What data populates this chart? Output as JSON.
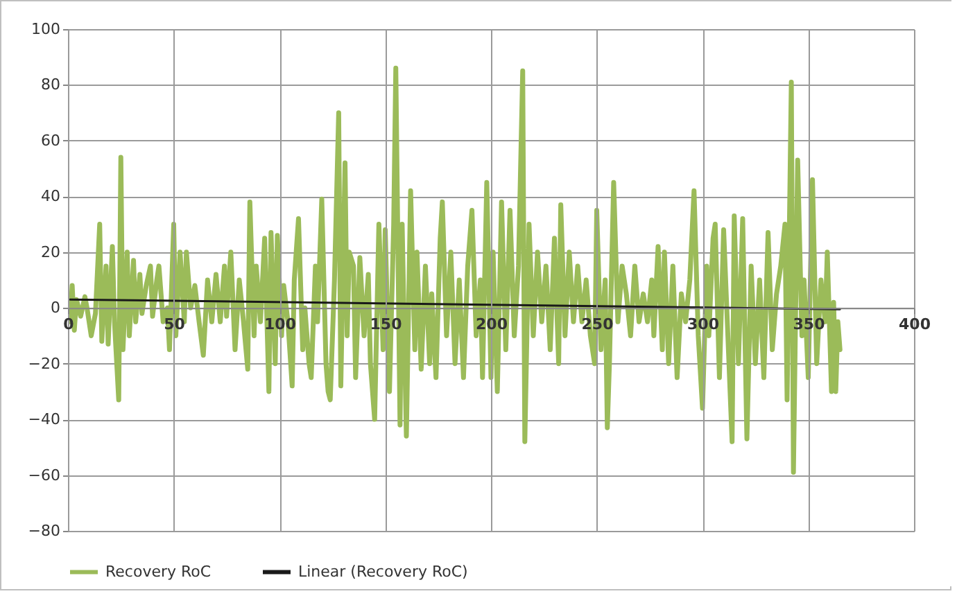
{
  "chart_data": {
    "type": "line",
    "xlim": [
      0,
      400
    ],
    "xticks": [
      0,
      50,
      100,
      150,
      200,
      250,
      300,
      350,
      400
    ],
    "ylim": [
      -80,
      100
    ],
    "yticks": [
      -80,
      -60,
      -40,
      -20,
      0,
      20,
      40,
      60,
      80,
      100
    ],
    "grid": true,
    "legend": "bottom",
    "marker": "none",
    "line_style": "solid",
    "series": [
      {
        "name": "Recovery RoC",
        "color": "#9bbb59",
        "type": "line",
        "x": [
          1,
          2,
          3,
          4,
          6,
          8,
          9,
          11,
          13,
          15,
          16,
          18,
          19,
          21,
          22,
          24,
          25,
          26,
          28,
          29,
          31,
          32,
          34,
          35,
          37,
          39,
          40,
          42,
          43,
          45,
          47,
          48,
          50,
          51,
          53,
          55,
          56,
          58,
          60,
          62,
          64,
          66,
          68,
          70,
          72,
          74,
          75,
          77,
          79,
          81,
          83,
          85,
          86,
          88,
          89,
          91,
          93,
          95,
          96,
          98,
          99,
          101,
          102,
          104,
          106,
          107,
          109,
          111,
          112,
          114,
          115,
          117,
          118,
          120,
          122,
          123,
          124,
          126,
          128,
          129,
          131,
          132,
          133,
          135,
          136,
          138,
          140,
          142,
          143,
          145,
          147,
          149,
          150,
          152,
          154,
          155,
          157,
          158,
          160,
          162,
          164,
          165,
          167,
          169,
          171,
          172,
          174,
          176,
          177,
          179,
          181,
          183,
          185,
          187,
          189,
          191,
          193,
          195,
          196,
          198,
          200,
          201,
          203,
          205,
          207,
          209,
          211,
          213,
          215,
          216,
          218,
          220,
          222,
          224,
          226,
          228,
          230,
          232,
          233,
          235,
          237,
          239,
          241,
          243,
          245,
          247,
          249,
          250,
          252,
          254,
          255,
          256,
          258,
          260,
          262,
          264,
          266,
          268,
          270,
          272,
          274,
          276,
          277,
          279,
          281,
          282,
          284,
          286,
          288,
          290,
          292,
          294,
          296,
          298,
          300,
          302,
          303,
          305,
          306,
          308,
          310,
          312,
          314,
          315,
          317,
          319,
          321,
          323,
          325,
          327,
          329,
          331,
          333,
          335,
          337,
          339,
          340,
          342,
          343,
          345,
          347,
          348,
          350,
          352,
          354,
          356,
          358,
          359,
          361,
          362,
          363,
          364,
          365
        ],
        "values": [
          -5,
          8,
          -8,
          3,
          -3,
          4,
          0,
          -10,
          -2,
          30,
          -12,
          15,
          -13,
          22,
          -5,
          -33,
          54,
          -15,
          20,
          -10,
          17,
          -5,
          12,
          -2,
          8,
          15,
          -3,
          10,
          15,
          -5,
          0,
          -15,
          30,
          -10,
          20,
          -5,
          20,
          0,
          8,
          -5,
          -17,
          10,
          -5,
          12,
          -5,
          15,
          -3,
          20,
          -15,
          10,
          -5,
          -22,
          38,
          -10,
          15,
          -5,
          25,
          -30,
          27,
          -20,
          26,
          -10,
          8,
          -5,
          -28,
          10,
          32,
          -15,
          0,
          -20,
          -25,
          15,
          -5,
          39,
          -20,
          -30,
          -33,
          10,
          70,
          -28,
          52,
          -10,
          20,
          15,
          -25,
          18,
          -10,
          12,
          -20,
          -40,
          30,
          -15,
          28,
          -30,
          30,
          86,
          -42,
          30,
          -46,
          42,
          -15,
          20,
          -22,
          15,
          -20,
          5,
          -25,
          25,
          38,
          -10,
          20,
          -20,
          10,
          -25,
          15,
          35,
          -10,
          10,
          -25,
          45,
          -25,
          20,
          -30,
          38,
          -15,
          35,
          -10,
          15,
          85,
          -48,
          30,
          -10,
          20,
          -5,
          15,
          -15,
          25,
          -20,
          37,
          -10,
          20,
          -5,
          15,
          -5,
          10,
          -10,
          -20,
          35,
          -15,
          10,
          -43,
          -20,
          45,
          -5,
          15,
          5,
          -10,
          15,
          -5,
          5,
          -5,
          10,
          -10,
          22,
          -15,
          20,
          -20,
          15,
          -25,
          5,
          -5,
          10,
          42,
          -10,
          -36,
          15,
          -10,
          25,
          30,
          -25,
          28,
          -10,
          -48,
          33,
          -20,
          32,
          -47,
          15,
          -20,
          10,
          -25,
          27,
          -15,
          5,
          15,
          30,
          -33,
          81,
          -59,
          53,
          -10,
          10,
          -25,
          46,
          -20,
          10,
          -5,
          20,
          -30,
          2,
          -30,
          -5,
          -15
        ]
      },
      {
        "name": "Linear (Recovery RoC)",
        "color": "#1a1a1a",
        "type": "line",
        "x": [
          1,
          365
        ],
        "values": [
          3,
          -0.5
        ]
      }
    ]
  }
}
